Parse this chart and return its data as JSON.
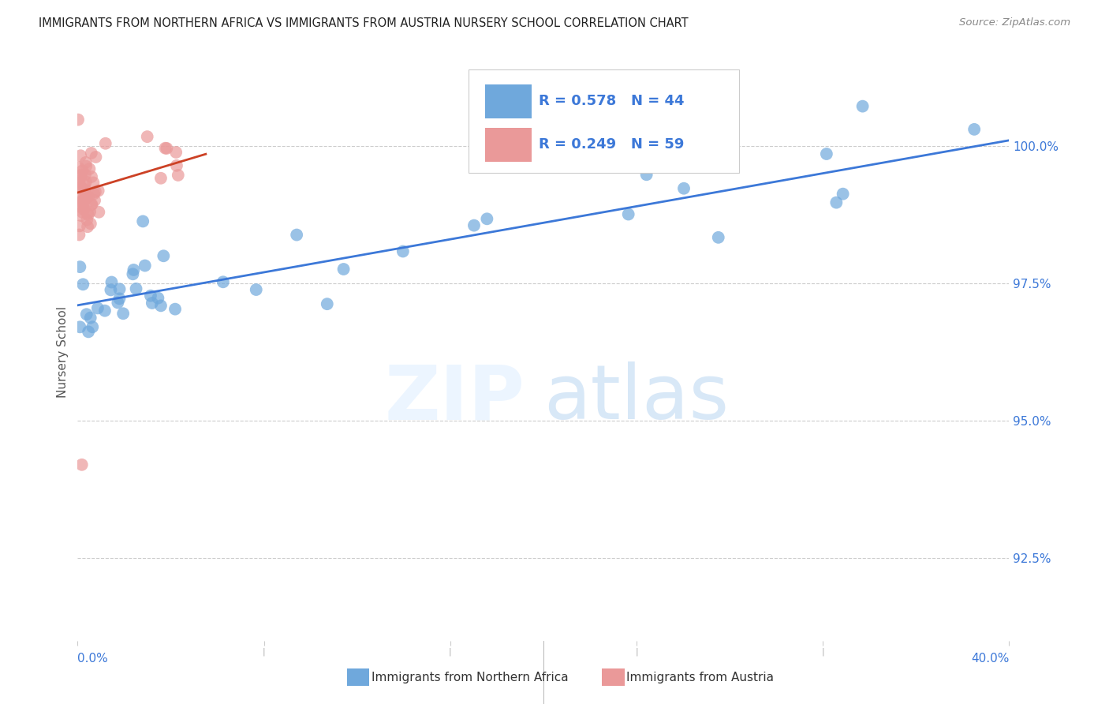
{
  "title": "IMMIGRANTS FROM NORTHERN AFRICA VS IMMIGRANTS FROM AUSTRIA NURSERY SCHOOL CORRELATION CHART",
  "source": "Source: ZipAtlas.com",
  "ylabel": "Nursery School",
  "y_ticks": [
    92.5,
    95.0,
    97.5,
    100.0
  ],
  "y_tick_labels": [
    "92.5%",
    "95.0%",
    "97.5%",
    "100.0%"
  ],
  "xlim": [
    0.0,
    40.0
  ],
  "ylim": [
    91.0,
    101.5
  ],
  "legend_r1": "0.578",
  "legend_n1": "44",
  "legend_r2": "0.249",
  "legend_n2": "59",
  "color_blue": "#6fa8dc",
  "color_pink": "#ea9999",
  "color_blue_line": "#3c78d8",
  "color_pink_line": "#cc4125",
  "legend_label1": "Immigrants from Northern Africa",
  "legend_label2": "Immigrants from Austria",
  "blue_line_x": [
    0.0,
    40.0
  ],
  "blue_line_y": [
    97.1,
    100.1
  ],
  "pink_line_x": [
    0.0,
    5.5
  ],
  "pink_line_y": [
    99.15,
    99.85
  ]
}
